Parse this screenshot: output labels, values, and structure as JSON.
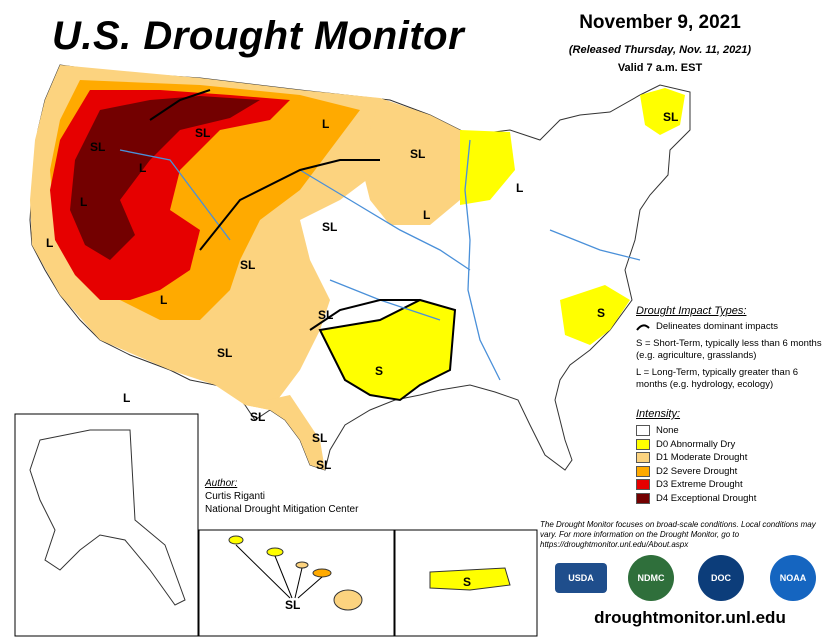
{
  "header": {
    "title": "U.S. Drought Monitor",
    "date": "November 9, 2021",
    "released": "(Released Thursday, Nov. 11, 2021)",
    "valid": "Valid 7 a.m. EST"
  },
  "impact_types": {
    "heading": "Drought Impact Types:",
    "delineates": "Delineates dominant impacts",
    "short_term": "S = Short-Term, typically less than 6 months (e.g. agriculture, grasslands)",
    "long_term": "L = Long-Term, typically greater than 6 months (e.g. hydrology, ecology)"
  },
  "intensity": {
    "heading": "Intensity:",
    "levels": [
      {
        "label": "None",
        "color": "#ffffff"
      },
      {
        "label": "D0 Abnormally Dry",
        "color": "#ffff00"
      },
      {
        "label": "D1 Moderate Drought",
        "color": "#fcd37f"
      },
      {
        "label": "D2 Severe Drought",
        "color": "#ffaa00"
      },
      {
        "label": "D3 Extreme Drought",
        "color": "#e60000"
      },
      {
        "label": "D4 Exceptional Drought",
        "color": "#730000"
      }
    ]
  },
  "author": {
    "heading": "Author:",
    "name": "Curtis Riganti",
    "org": "National Drought Mitigation Center"
  },
  "note": "The Drought Monitor focuses on broad-scale conditions. Local conditions may vary. For more information on the Drought Monitor, go to https://droughtmonitor.unl.edu/About.aspx",
  "logos": [
    "USDA",
    "NDMC",
    "DOC",
    "NOAA"
  ],
  "url": "droughtmonitor.unl.edu",
  "map_labels": [
    "SL",
    "L",
    "L",
    "SL",
    "L",
    "L",
    "SL",
    "L",
    "L",
    "SL",
    "SL",
    "SL",
    "L",
    "SL",
    "SL",
    "S",
    "S",
    "SL",
    "SL",
    "SL",
    "S",
    "L",
    "SL"
  ],
  "colors": {
    "river": "#4a90d9",
    "boundary": "#000000",
    "water": "#8fc1ea"
  }
}
